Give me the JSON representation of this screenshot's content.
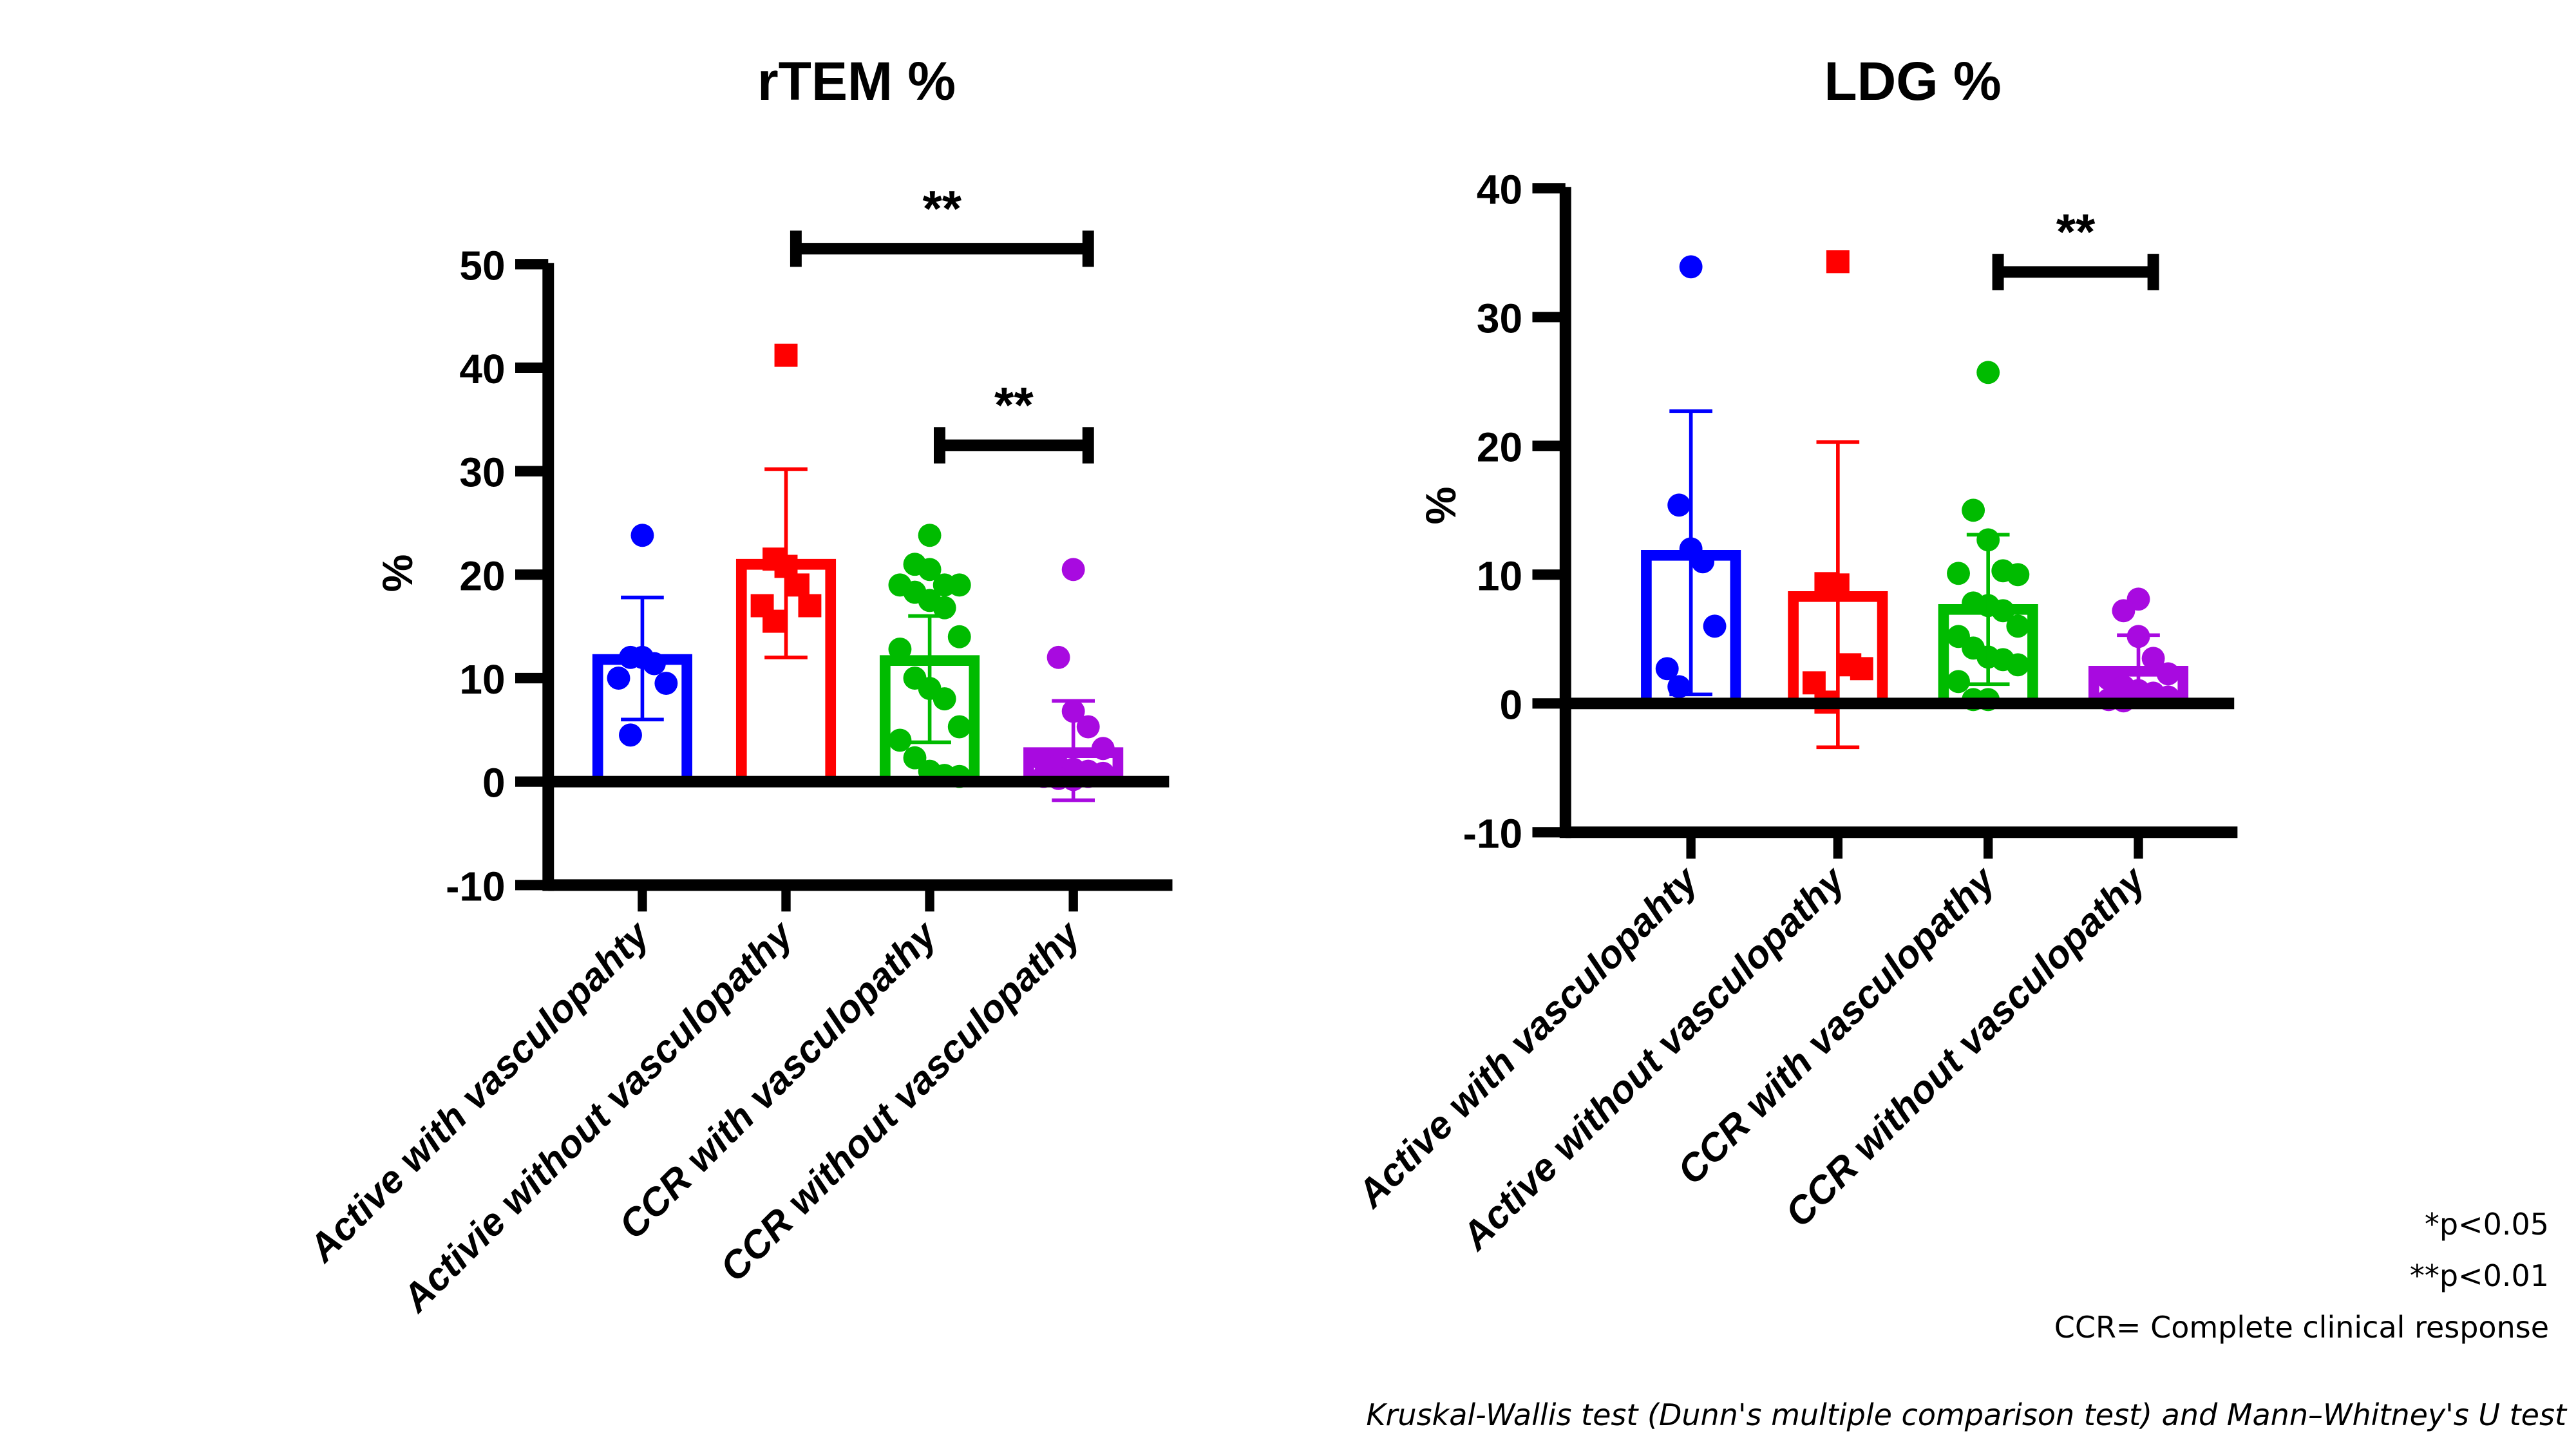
{
  "chart_data": [
    {
      "type": "bar",
      "title": "rTEM %",
      "xlabel": "",
      "ylabel": "%",
      "ylim": [
        -10,
        50
      ],
      "yticks": [
        50,
        40,
        30,
        20,
        10,
        0,
        -10
      ],
      "categories": [
        "Active with vasculopahty",
        "Activie without vasculopathy",
        "CCR with vasculopathy",
        "CCR without vasculopathy"
      ],
      "grid": false,
      "bar_style": "hollow bar with mean, SD error bars and individual points",
      "series": [
        {
          "name": "Active with vasculopahty",
          "color": "#0000ff",
          "marker": "circle",
          "mean": 11.8,
          "err_high": 17.8,
          "err_low": 6.0,
          "points": [
            23.8,
            12.0,
            12.0,
            11.4,
            9.5,
            10.0,
            4.5
          ]
        },
        {
          "name": "Activie without vasculopathy",
          "color": "#ff0000",
          "marker": "square",
          "mean": 21.0,
          "err_high": 30.2,
          "err_low": 12.0,
          "points": [
            41.2,
            21.5,
            20.8,
            19.0,
            17.0,
            17.0,
            15.5
          ]
        },
        {
          "name": "CCR with vasculopathy",
          "color": "#00bb00",
          "marker": "circle",
          "mean": 11.7,
          "err_high": 16.0,
          "err_low": 3.8,
          "points": [
            23.8,
            21.0,
            20.5,
            19.0,
            19.0,
            19.0,
            18.3,
            17.5,
            16.8,
            14.0,
            12.8,
            10.0,
            9.0,
            8.0,
            5.3,
            4.0,
            2.3,
            1.0,
            0.6,
            0.5
          ]
        },
        {
          "name": "CCR without vasculopathy",
          "color": "#a80ae0",
          "marker": "circle",
          "mean": 2.8,
          "err_high": 7.8,
          "err_low": -1.8,
          "points": [
            20.5,
            12.0,
            6.8,
            5.3,
            3.2,
            2.0,
            1.5,
            1.2,
            1.0,
            0.8,
            0.5,
            0.3,
            0.2,
            0.5
          ]
        }
      ],
      "comparisons": [
        {
          "from": "Activie without vasculopathy",
          "to": "CCR without vasculopathy",
          "label": "**",
          "y": 51.5
        },
        {
          "from": "CCR with vasculopathy",
          "to": "CCR without vasculopathy",
          "label": "**",
          "y": 32.5
        }
      ]
    },
    {
      "type": "bar",
      "title": "LDG %",
      "xlabel": "",
      "ylabel": "%",
      "ylim": [
        -10,
        40
      ],
      "yticks": [
        40,
        30,
        20,
        10,
        0,
        -10
      ],
      "categories": [
        "Active with vasculopahty",
        "Active without vasculopathy",
        "CCR with vasculopathy",
        "CCR without vasculopathy"
      ],
      "grid": false,
      "bar_style": "hollow bar with mean, SD error bars and individual points",
      "series": [
        {
          "name": "Active with vasculopahty",
          "color": "#0000ff",
          "marker": "circle",
          "mean": 11.5,
          "err_high": 22.7,
          "err_low": 0.7,
          "points": [
            33.9,
            15.4,
            12.0,
            11.0,
            6.0,
            2.7,
            1.3
          ]
        },
        {
          "name": "Active without vasculopathy",
          "color": "#ff0000",
          "marker": "square",
          "mean": 8.3,
          "err_high": 20.3,
          "err_low": -3.4,
          "points": [
            34.3,
            9.3,
            9.2,
            3.0,
            2.7,
            1.6,
            0.1
          ]
        },
        {
          "name": "CCR with vasculopathy",
          "color": "#00bb00",
          "marker": "circle",
          "mean": 7.3,
          "err_high": 13.1,
          "err_low": 1.5,
          "points": [
            25.7,
            15.0,
            12.7,
            10.3,
            10.0,
            10.1,
            7.8,
            7.6,
            7.2,
            6.0,
            5.2,
            4.3,
            3.6,
            3.4,
            3.0,
            1.7,
            0.3,
            0.3
          ]
        },
        {
          "name": "CCR without vasculopathy",
          "color": "#a80ae0",
          "marker": "circle",
          "mean": 2.5,
          "err_high": 5.3,
          "err_low": -0.3,
          "points": [
            8.1,
            7.2,
            5.2,
            3.5,
            2.3,
            1.9,
            1.3,
            1.0,
            0.8,
            0.5,
            0.3,
            0.2
          ]
        }
      ],
      "comparisons": [
        {
          "from": "CCR with vasculopathy",
          "to": "CCR without vasculopathy",
          "label": "**",
          "y": 33.5
        }
      ]
    }
  ],
  "footnotes": {
    "p05": "*p<0.05",
    "p01": "**p<0.01",
    "ccr": "CCR= Complete clinical response",
    "tests": "Kruskal-Wallis test (Dunn's multiple comparison test) and Mann–Whitney's U test"
  }
}
